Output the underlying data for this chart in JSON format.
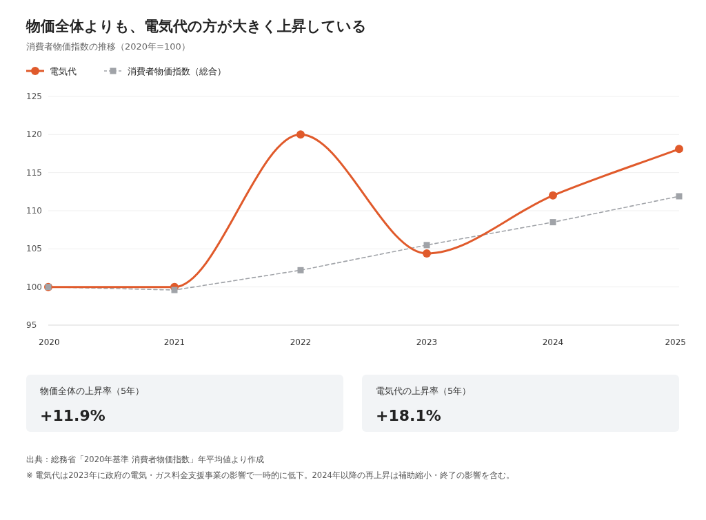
{
  "chart_data": [
    {
      "type": "line",
      "title": "物価全体よりも、電気代の方が大きく上昇している",
      "subtitle": "消費者物価指数の推移（2020年=100）",
      "categories": [
        "2020",
        "2021",
        "2022",
        "2023",
        "2024",
        "2025"
      ],
      "series": [
        {
          "name": "電気代",
          "color": "#e05a2b",
          "values": [
            100,
            100,
            120,
            104.4,
            112,
            118.1
          ],
          "marker": "circle",
          "line_style": "solid"
        },
        {
          "name": "消費者物価指数（総合）",
          "color": "#a0a3a8",
          "values": [
            100,
            99.6,
            102.2,
            105.5,
            108.5,
            111.9
          ],
          "marker": "square",
          "line_style": "dashed"
        }
      ],
      "ylim": [
        95,
        125
      ],
      "yticks": [
        95,
        100,
        105,
        110,
        115,
        120,
        125
      ],
      "grid": "y",
      "legend": "top left",
      "annotations": [
        "出典：総務省「2020年基準 消費者物価指数」年平均値より作成",
        "※ 電気代は2023年に政府の電気・ガス料金支援事業の影響で一時的に低下。2024年以降の再上昇は補助縮小・終了の影響を含む。"
      ]
    },
    {
      "type": "other",
      "title": "物価全体の上昇率（5年）",
      "annotations": [
        "+11.9%"
      ]
    },
    {
      "type": "other",
      "title": "電気代の上昇率（5年）",
      "annotations": [
        "+18.1%"
      ]
    }
  ]
}
